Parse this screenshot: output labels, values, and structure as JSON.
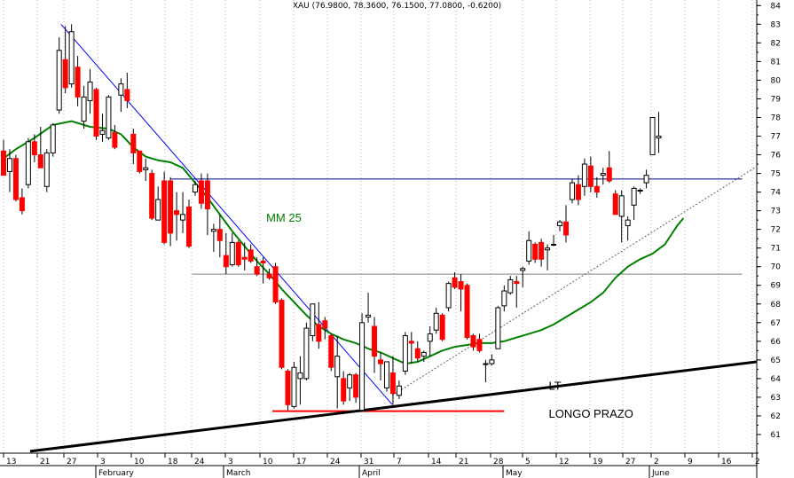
{
  "header": {
    "text": "XAU (76.9800, 78.3600, 76.1500, 77.0800, -0.6200)"
  },
  "chart_data": {
    "type": "candlestick",
    "symbol": "XAU",
    "title": "XAU (76.9800, 78.3600, 76.1500, 77.0800, -0.6200)",
    "ylim": [
      60,
      84.3
    ],
    "yticks": [
      61,
      62,
      63,
      64,
      65,
      66,
      67,
      68,
      69,
      70,
      71,
      72,
      73,
      74,
      75,
      76,
      77,
      78,
      79,
      80,
      81,
      82,
      83,
      84
    ],
    "grid": "vertical dotted",
    "colors": {
      "down": "#ff0000",
      "up": "#ffffff",
      "border": "#000000",
      "ma": "#008000",
      "trend_down": "#0000ff",
      "resistance": "#000080",
      "support": "#ff0000",
      "long_trend": "#000000",
      "aux": "#808080"
    },
    "x_day_labels": [
      "13",
      "21",
      "27",
      "3",
      "10",
      "18",
      "24",
      "3",
      "10",
      "17",
      "24",
      "31",
      "7",
      "14",
      "21",
      "28",
      "5",
      "12",
      "19",
      "27",
      "2",
      "9",
      "16",
      "2"
    ],
    "x_month_labels": [
      "February",
      "March",
      "April",
      "May",
      "June"
    ],
    "annotations": {
      "ma_label": "MM 25",
      "lt_label_1": "LT",
      "lt_label_2": "LONGO PRAZO"
    },
    "candles": [
      [
        76.2,
        76.8,
        74.9,
        74.9
      ],
      [
        75.1,
        76.3,
        74.0,
        75.8
      ],
      [
        75.8,
        76.0,
        73.5,
        73.6
      ],
      [
        73.7,
        74.2,
        72.8,
        73.0
      ],
      [
        74.4,
        76.9,
        74.2,
        76.7
      ],
      [
        76.7,
        77.1,
        75.6,
        76.0
      ],
      [
        76.0,
        77.5,
        75.3,
        75.3
      ],
      [
        74.3,
        76.3,
        74.0,
        76.1
      ],
      [
        76.1,
        77.7,
        75.9,
        77.6
      ],
      [
        78.4,
        82.3,
        78.2,
        81.6
      ],
      [
        81.1,
        82.9,
        79.3,
        79.6
      ],
      [
        79.8,
        83.0,
        79.6,
        82.6
      ],
      [
        80.7,
        81.3,
        78.6,
        79.1
      ],
      [
        77.8,
        79.7,
        77.4,
        79.1
      ],
      [
        78.9,
        80.6,
        78.2,
        79.9
      ],
      [
        79.5,
        79.6,
        76.8,
        77.0
      ],
      [
        77.1,
        78.2,
        76.7,
        77.3
      ],
      [
        76.9,
        79.2,
        76.8,
        79.1
      ],
      [
        77.2,
        77.6,
        76.3,
        76.4
      ],
      [
        79.2,
        80.1,
        78.3,
        79.8
      ],
      [
        79.5,
        80.4,
        78.5,
        78.9
      ],
      [
        77.1,
        77.4,
        75.5,
        76.1
      ],
      [
        76.2,
        76.2,
        75.0,
        75.1
      ],
      [
        75.2,
        75.8,
        74.6,
        75.3
      ],
      [
        75.0,
        75.2,
        72.5,
        72.6
      ],
      [
        72.5,
        74.3,
        72.5,
        73.6
      ],
      [
        74.6,
        75.1,
        71.2,
        71.3
      ],
      [
        74.6,
        74.8,
        71.1,
        71.8
      ],
      [
        73.0,
        74.0,
        71.4,
        72.8
      ],
      [
        72.5,
        74.0,
        71.8,
        72.8
      ],
      [
        73.2,
        73.6,
        71.0,
        71.1
      ],
      [
        74.0,
        74.6,
        73.8,
        74.4
      ],
      [
        74.6,
        75.0,
        73.1,
        73.4
      ],
      [
        74.6,
        75.0,
        71.7,
        73.1
      ],
      [
        71.9,
        72.3,
        70.8,
        72.0
      ],
      [
        72.0,
        72.8,
        70.5,
        71.4
      ],
      [
        70.6,
        71.8,
        69.6,
        70.0
      ],
      [
        70.1,
        71.8,
        70.0,
        71.3
      ],
      [
        71.3,
        71.4,
        70.0,
        70.1
      ],
      [
        70.5,
        71.3,
        69.8,
        70.4
      ],
      [
        70.9,
        71.2,
        70.2,
        70.3
      ],
      [
        70.0,
        70.5,
        69.5,
        69.6
      ],
      [
        70.3,
        70.5,
        69.1,
        70.2
      ],
      [
        69.6,
        69.9,
        69.3,
        69.4
      ],
      [
        70.0,
        70.2,
        68.0,
        68.1
      ],
      [
        68.2,
        68.3,
        64.5,
        64.6
      ],
      [
        64.4,
        64.5,
        62.3,
        62.6
      ],
      [
        62.5,
        64.9,
        62.4,
        64.6
      ],
      [
        64.0,
        65.2,
        62.6,
        64.3
      ],
      [
        64.0,
        67.0,
        63.9,
        66.7
      ],
      [
        66.3,
        68.0,
        66.0,
        68.0
      ],
      [
        66.9,
        68.1,
        65.6,
        66.0
      ],
      [
        67.1,
        67.3,
        66.1,
        66.7
      ],
      [
        66.3,
        66.4,
        64.4,
        64.6
      ],
      [
        64.1,
        66.3,
        62.4,
        65.2
      ],
      [
        64.0,
        64.4,
        62.6,
        62.8
      ],
      [
        63.5,
        64.3,
        62.8,
        64.2
      ],
      [
        64.2,
        64.3,
        62.7,
        63.0
      ],
      [
        62.3,
        67.5,
        62.3,
        67.0
      ],
      [
        67.3,
        68.6,
        67.0,
        67.4
      ],
      [
        66.8,
        67.3,
        64.3,
        65.2
      ],
      [
        65.0,
        65.4,
        63.9,
        64.8
      ],
      [
        63.5,
        64.9,
        63.3,
        64.9
      ],
      [
        64.3,
        65.2,
        62.6,
        63.2
      ],
      [
        63.1,
        63.9,
        62.9,
        63.6
      ],
      [
        64.4,
        66.5,
        64.2,
        66.3
      ],
      [
        66.0,
        66.5,
        64.8,
        65.9
      ],
      [
        65.6,
        66.0,
        64.9,
        65.1
      ],
      [
        65.2,
        65.5,
        64.9,
        65.4
      ],
      [
        66.0,
        66.8,
        65.2,
        66.4
      ],
      [
        66.6,
        67.8,
        66.4,
        67.5
      ],
      [
        67.4,
        67.5,
        66.0,
        66.1
      ],
      [
        67.8,
        69.2,
        67.6,
        69.1
      ],
      [
        69.4,
        69.7,
        68.8,
        68.9
      ],
      [
        69.2,
        69.6,
        67.6,
        68.8
      ],
      [
        69.0,
        69.1,
        66.1,
        66.2
      ],
      [
        66.3,
        66.4,
        65.5,
        65.7
      ],
      [
        66.1,
        66.4,
        65.4,
        65.5
      ],
      [
        64.8,
        65.0,
        63.8,
        64.8
      ],
      [
        64.8,
        65.3,
        64.7,
        65.0
      ],
      [
        65.6,
        67.9,
        65.6,
        67.8
      ],
      [
        67.9,
        69.0,
        67.6,
        68.7
      ],
      [
        68.6,
        69.5,
        68.5,
        69.3
      ],
      [
        69.2,
        69.5,
        67.8,
        69.1
      ],
      [
        69.8,
        70.0,
        68.9,
        69.9
      ],
      [
        70.3,
        71.9,
        70.1,
        71.4
      ],
      [
        71.2,
        71.3,
        70.2,
        70.4
      ],
      [
        71.3,
        71.5,
        70.0,
        70.4
      ],
      [
        70.9,
        71.2,
        69.8,
        71.0
      ],
      [
        71.2,
        71.7,
        71.1,
        71.2
      ],
      [
        72.2,
        72.5,
        71.9,
        72.4
      ],
      [
        72.4,
        73.3,
        71.3,
        71.7
      ],
      [
        73.6,
        74.7,
        73.4,
        74.5
      ],
      [
        74.4,
        74.9,
        73.3,
        73.6
      ],
      [
        74.3,
        75.8,
        73.8,
        75.5
      ],
      [
        75.4,
        75.9,
        74.0,
        74.3
      ],
      [
        74.3,
        74.8,
        73.7,
        74.0
      ],
      [
        74.9,
        75.3,
        74.4,
        75.0
      ],
      [
        75.3,
        76.2,
        74.5,
        74.6
      ],
      [
        73.9,
        74.1,
        72.8,
        72.8
      ],
      [
        72.7,
        74.1,
        71.3,
        73.8
      ],
      [
        72.2,
        72.7,
        71.4,
        72.5
      ],
      [
        73.3,
        74.3,
        72.5,
        74.2
      ],
      [
        74.1,
        74.2,
        73.9,
        74.1
      ],
      [
        74.5,
        75.2,
        74.2,
        74.9
      ],
      [
        76.0,
        78.0,
        76.0,
        78.0
      ],
      [
        76.9,
        78.3,
        76.1,
        77.0
      ]
    ]
  }
}
